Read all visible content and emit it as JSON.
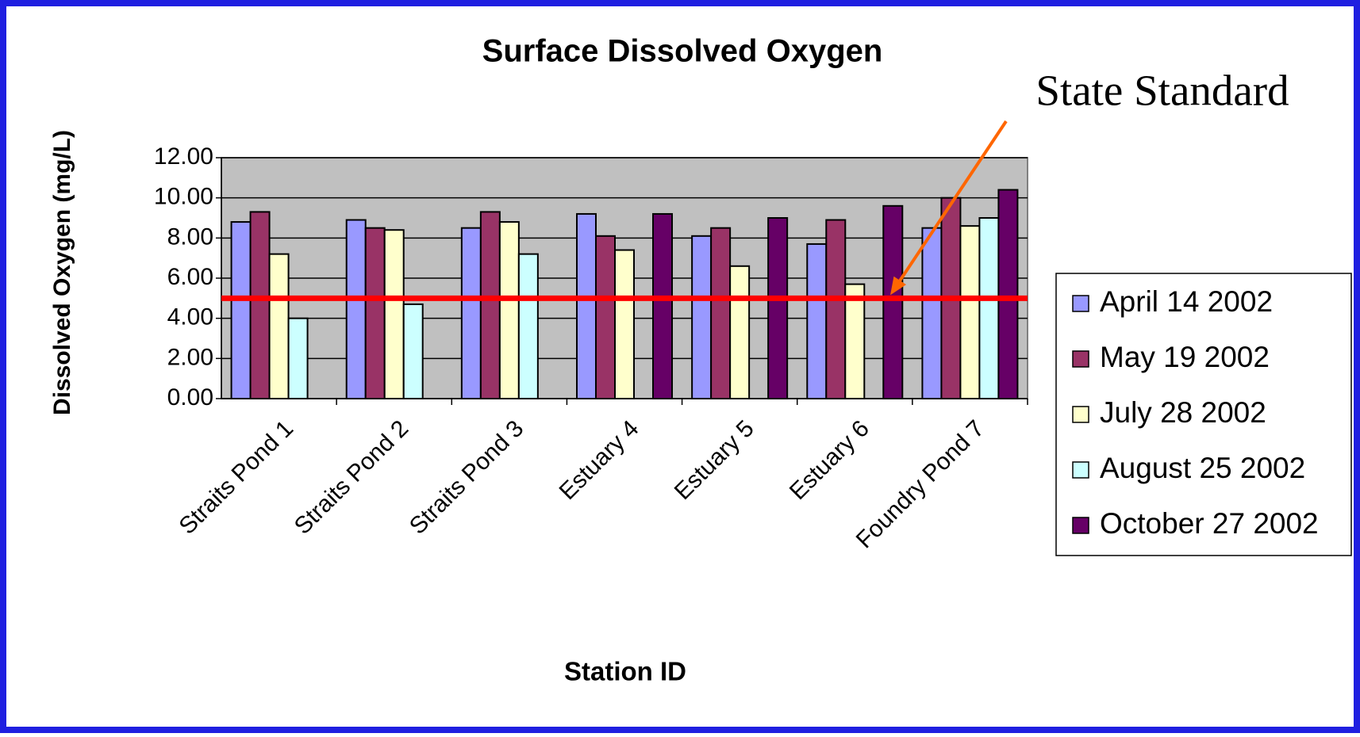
{
  "chart_data": {
    "type": "bar",
    "title": "Surface Dissolved Oxygen",
    "x_label": "Station ID",
    "y_label": "Dissolved Oxygen (mg/L)",
    "categories": [
      "Straits Pond 1",
      "Straits Pond 2",
      "Straits Pond 3",
      "Estuary 4",
      "Estuary 5",
      "Estuary 6",
      "Foundry Pond 7"
    ],
    "series": [
      {
        "name": "April 14 2002",
        "color": "#9999ff",
        "values": [
          8.8,
          8.9,
          8.5,
          9.2,
          8.1,
          7.7,
          8.5
        ]
      },
      {
        "name": "May 19 2002",
        "color": "#993366",
        "values": [
          9.3,
          8.5,
          9.3,
          8.1,
          8.5,
          8.9,
          10.0
        ]
      },
      {
        "name": "July 28 2002",
        "color": "#ffffcc",
        "values": [
          7.2,
          8.4,
          8.8,
          7.4,
          6.6,
          5.7,
          8.6
        ]
      },
      {
        "name": "August 25 2002",
        "color": "#ccffff",
        "values": [
          4.0,
          4.7,
          7.2,
          null,
          null,
          null,
          9.0
        ]
      },
      {
        "name": "October 27 2002",
        "color": "#660066",
        "values": [
          null,
          null,
          null,
          9.2,
          9.0,
          9.6,
          10.4
        ]
      }
    ],
    "ylim": [
      0,
      12
    ],
    "yticks": [
      {
        "value": 0,
        "label": "0.00"
      },
      {
        "value": 2,
        "label": "2.00"
      },
      {
        "value": 4,
        "label": "4.00"
      },
      {
        "value": 6,
        "label": "6.00"
      },
      {
        "value": 8,
        "label": "8.00"
      },
      {
        "value": 10,
        "label": "10.00"
      },
      {
        "value": 12,
        "label": "12.00"
      }
    ],
    "grid": true,
    "legend": "right",
    "annotations": [
      {
        "text": "State Standard",
        "value": 5,
        "color": "#ff0000",
        "arrow_color": "#ff6600"
      }
    ]
  }
}
